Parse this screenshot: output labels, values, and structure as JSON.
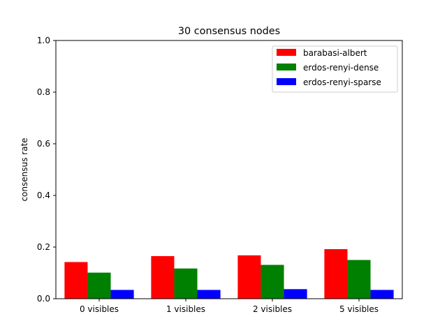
{
  "chart_data": {
    "type": "bar",
    "title": "30 consensus nodes",
    "xlabel": "",
    "ylabel": "consensus rate",
    "categories": [
      "0 visibles",
      "1 visibles",
      "2 visibles",
      "5 visibles"
    ],
    "ylim": [
      0,
      1.0
    ],
    "yticks": [
      "0.0",
      "0.2",
      "0.4",
      "0.6",
      "0.8",
      "1.0"
    ],
    "grid": false,
    "legend_position": "top-right",
    "series": [
      {
        "name": "barabasi-albert",
        "color": "#ff0000",
        "values": [
          0.142,
          0.165,
          0.168,
          0.192
        ]
      },
      {
        "name": "erdos-renyi-dense",
        "color": "#008000",
        "values": [
          0.101,
          0.117,
          0.131,
          0.15
        ]
      },
      {
        "name": "erdos-renyi-sparse",
        "color": "#0000ff",
        "values": [
          0.034,
          0.034,
          0.037,
          0.034
        ]
      }
    ]
  }
}
